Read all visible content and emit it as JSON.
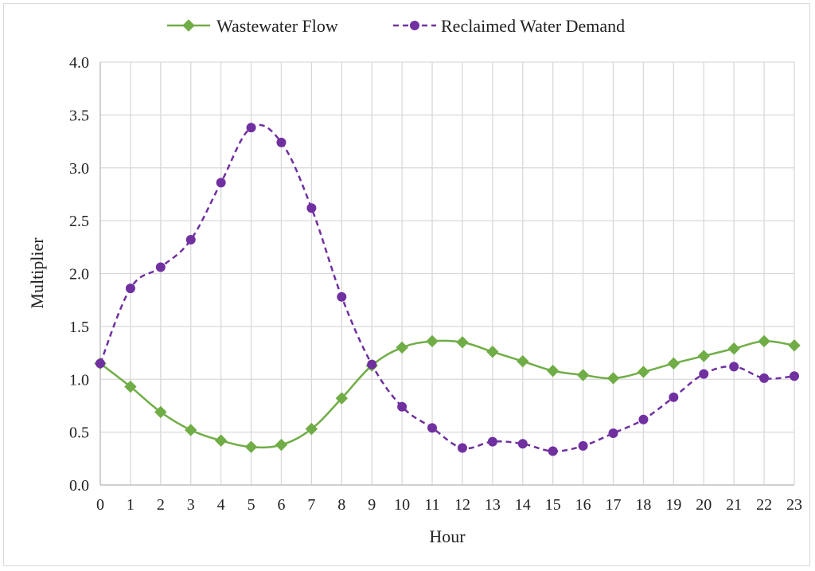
{
  "chart_data": {
    "type": "line",
    "title": "",
    "xlabel": "Hour",
    "ylabel": "Multiplier",
    "x": [
      0,
      1,
      2,
      3,
      4,
      5,
      6,
      7,
      8,
      9,
      10,
      11,
      12,
      13,
      14,
      15,
      16,
      17,
      18,
      19,
      20,
      21,
      22,
      23
    ],
    "x_tick_labels": [
      "0",
      "1",
      "2",
      "3",
      "4",
      "5",
      "6",
      "7",
      "8",
      "9",
      "10",
      "11",
      "12",
      "13",
      "14",
      "15",
      "16",
      "17",
      "18",
      "19",
      "20",
      "21",
      "22",
      "23"
    ],
    "ylim": [
      0,
      4.0
    ],
    "y_ticks": [
      0.0,
      0.5,
      1.0,
      1.5,
      2.0,
      2.5,
      3.0,
      3.5,
      4.0
    ],
    "y_tick_labels": [
      "0.0",
      "0.5",
      "1.0",
      "1.5",
      "2.0",
      "2.5",
      "3.0",
      "3.5",
      "4.0"
    ],
    "grid": true,
    "legend_position": "top",
    "series": [
      {
        "name": "Wastewater Flow",
        "color": "#70ad47",
        "marker": "diamond",
        "line_style": "solid",
        "values": [
          1.15,
          0.93,
          0.69,
          0.52,
          0.42,
          0.36,
          0.38,
          0.53,
          0.82,
          1.13,
          1.3,
          1.36,
          1.35,
          1.26,
          1.17,
          1.08,
          1.04,
          1.01,
          1.07,
          1.15,
          1.22,
          1.29,
          1.36,
          1.32
        ]
      },
      {
        "name": "Reclaimed Water Demand",
        "color": "#7030a0",
        "marker": "circle",
        "line_style": "dashed",
        "values": [
          1.15,
          1.86,
          2.06,
          2.32,
          2.86,
          3.38,
          3.24,
          2.62,
          1.78,
          1.14,
          0.74,
          0.54,
          0.35,
          0.41,
          0.39,
          0.32,
          0.37,
          0.49,
          0.62,
          0.83,
          1.05,
          1.12,
          1.01,
          1.03
        ]
      }
    ]
  }
}
